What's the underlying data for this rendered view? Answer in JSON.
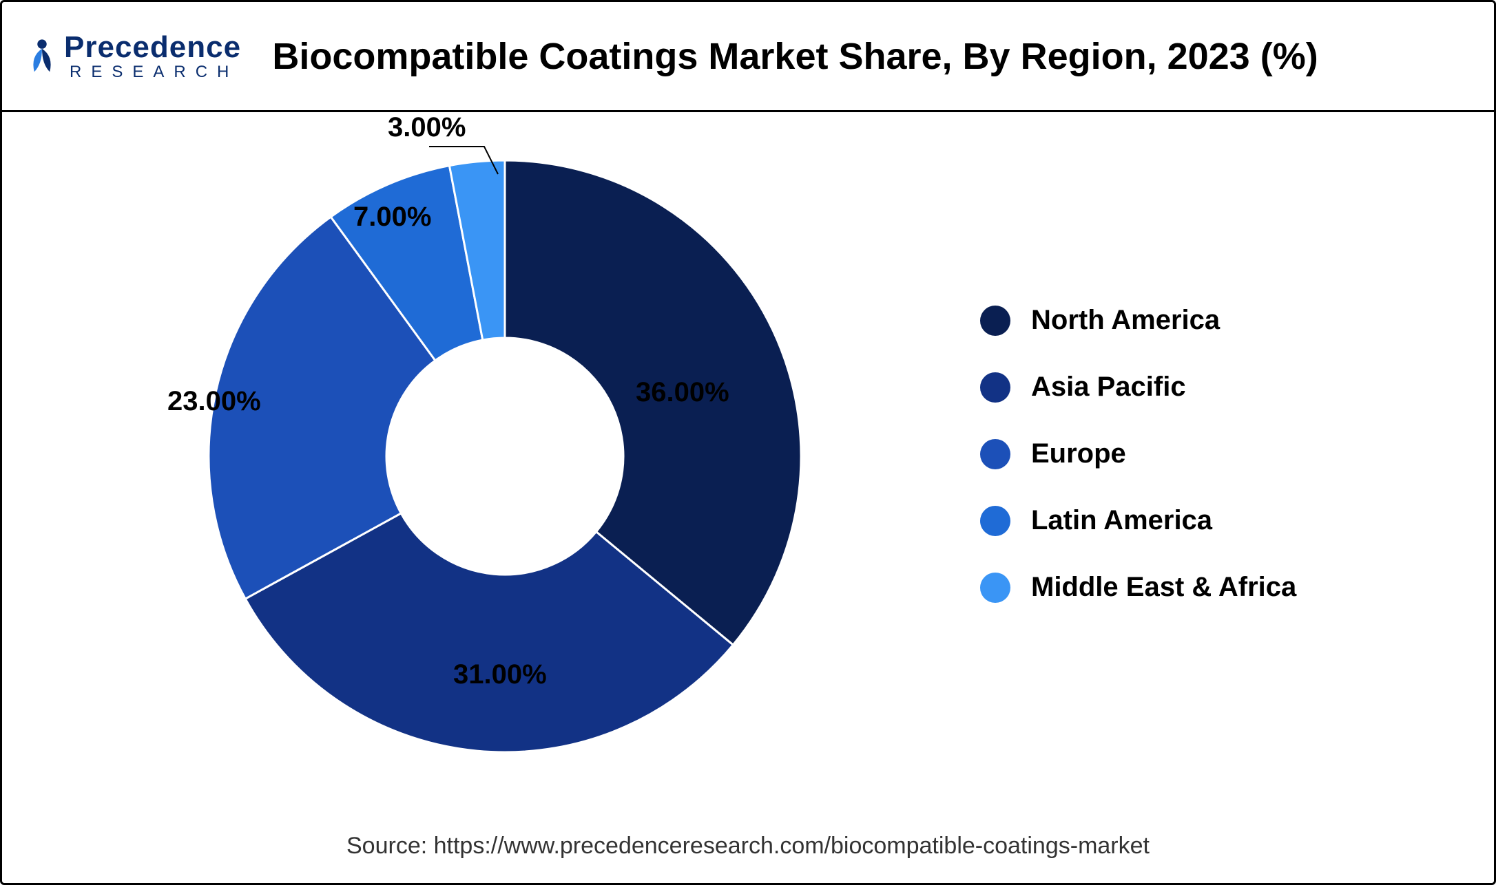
{
  "title": "Biocompatible Coatings Market Share, By Region, 2023 (%)",
  "logo": {
    "brand_top": "recedence",
    "brand_p": "P",
    "brand_sub": "RESEARCH",
    "color_primary": "#0a2d6e",
    "color_accent": "#2a7de1"
  },
  "chart": {
    "type": "donut",
    "inner_radius_ratio": 0.4,
    "background_color": "#ffffff",
    "series": [
      {
        "label": "North America",
        "value": 36.0,
        "color": "#0a1f52",
        "display": "36.00%"
      },
      {
        "label": "Asia Pacific",
        "value": 31.0,
        "color": "#123285",
        "display": "31.00%"
      },
      {
        "label": "Europe",
        "value": 23.0,
        "color": "#1c50b8",
        "display": "23.00%"
      },
      {
        "label": "Latin America",
        "value": 7.0,
        "color": "#1f6bd6",
        "display": "7.00%"
      },
      {
        "label": "Middle East & Africa",
        "value": 3.0,
        "color": "#3a95f5",
        "display": "3.00%"
      }
    ],
    "label_fontsize": 40,
    "legend_fontsize": 40,
    "title_fontsize": 54
  },
  "source": "Source: https://www.precedenceresearch.com/biocompatible-coatings-market"
}
